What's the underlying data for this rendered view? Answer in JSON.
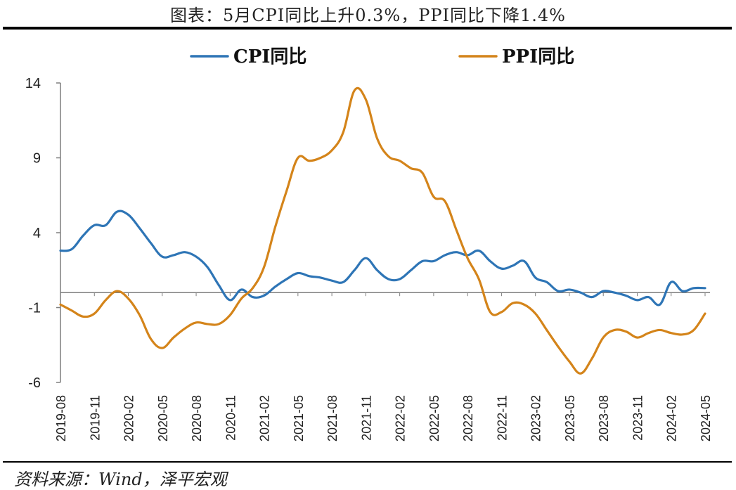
{
  "header": {
    "title": "图表：5月CPI同比上升0.3%，PPI同比下降1.4%"
  },
  "footer": {
    "source": "资料来源：Wind，泽平宏观"
  },
  "colors": {
    "cpi": "#2E75B6",
    "ppi": "#D4841A",
    "axis": "#7f7f7f",
    "text": "#222222"
  },
  "chart_data": {
    "type": "line",
    "title": "",
    "xlabel": "",
    "ylabel": "",
    "ylim": [
      -6,
      14
    ],
    "yticks": [
      14,
      9,
      4,
      -1,
      -6
    ],
    "ytick_labels": [
      "14",
      "9",
      "4",
      "-1",
      "-6"
    ],
    "grid": false,
    "legend_position": "top",
    "x_tick_labels": [
      "2019-08",
      "2019-11",
      "2020-02",
      "2020-05",
      "2020-08",
      "2020-11",
      "2021-02",
      "2021-05",
      "2021-08",
      "2021-11",
      "2022-02",
      "2022-05",
      "2022-08",
      "2022-11",
      "2023-02",
      "2023-05",
      "2023-08",
      "2023-11",
      "2024-02",
      "2024-05"
    ],
    "x": [
      "2019-08",
      "2019-09",
      "2019-10",
      "2019-11",
      "2019-12",
      "2020-01",
      "2020-02",
      "2020-03",
      "2020-04",
      "2020-05",
      "2020-06",
      "2020-07",
      "2020-08",
      "2020-09",
      "2020-10",
      "2020-11",
      "2020-12",
      "2021-01",
      "2021-02",
      "2021-03",
      "2021-04",
      "2021-05",
      "2021-06",
      "2021-07",
      "2021-08",
      "2021-09",
      "2021-10",
      "2021-11",
      "2021-12",
      "2022-01",
      "2022-02",
      "2022-03",
      "2022-04",
      "2022-05",
      "2022-06",
      "2022-07",
      "2022-08",
      "2022-09",
      "2022-10",
      "2022-11",
      "2022-12",
      "2023-01",
      "2023-02",
      "2023-03",
      "2023-04",
      "2023-05",
      "2023-06",
      "2023-07",
      "2023-08",
      "2023-09",
      "2023-10",
      "2023-11",
      "2023-12",
      "2024-01",
      "2024-02",
      "2024-03",
      "2024-04",
      "2024-05"
    ],
    "series": [
      {
        "name": "CPI同比",
        "color": "#2E75B6",
        "values": [
          2.8,
          2.9,
          3.8,
          4.5,
          4.5,
          5.4,
          5.2,
          4.3,
          3.3,
          2.4,
          2.5,
          2.7,
          2.4,
          1.7,
          0.5,
          -0.5,
          0.2,
          -0.3,
          -0.2,
          0.4,
          0.9,
          1.3,
          1.1,
          1.0,
          0.8,
          0.7,
          1.5,
          2.3,
          1.5,
          0.9,
          0.9,
          1.5,
          2.1,
          2.1,
          2.5,
          2.7,
          2.5,
          2.8,
          2.1,
          1.6,
          1.8,
          2.1,
          1.0,
          0.7,
          0.1,
          0.2,
          0.0,
          -0.3,
          0.1,
          0.0,
          -0.2,
          -0.5,
          -0.3,
          -0.8,
          0.7,
          0.1,
          0.3,
          0.3
        ]
      },
      {
        "name": "PPI同比",
        "color": "#D4841A",
        "values": [
          -0.8,
          -1.2,
          -1.6,
          -1.4,
          -0.5,
          0.1,
          -0.4,
          -1.5,
          -3.1,
          -3.7,
          -3.0,
          -2.4,
          -2.0,
          -2.1,
          -2.1,
          -1.5,
          -0.4,
          0.3,
          1.7,
          4.4,
          6.8,
          9.0,
          8.8,
          9.0,
          9.5,
          10.7,
          13.5,
          12.9,
          10.3,
          9.1,
          8.8,
          8.3,
          8.0,
          6.4,
          6.1,
          4.2,
          2.3,
          0.9,
          -1.3,
          -1.3,
          -0.7,
          -0.8,
          -1.4,
          -2.5,
          -3.6,
          -4.6,
          -5.4,
          -4.4,
          -3.0,
          -2.5,
          -2.6,
          -3.0,
          -2.7,
          -2.5,
          -2.7,
          -2.8,
          -2.5,
          -1.4
        ]
      }
    ]
  }
}
